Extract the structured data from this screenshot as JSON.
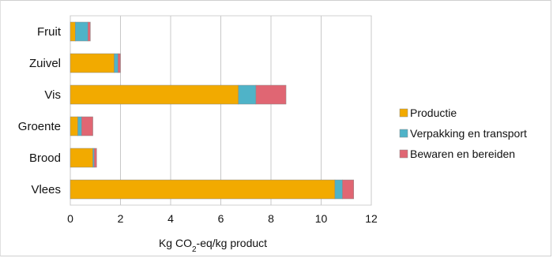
{
  "chart_data": {
    "type": "bar",
    "orientation": "horizontal",
    "stacked": true,
    "categories": [
      "Fruit",
      "Zuivel",
      "Vis",
      "Groente",
      "Brood",
      "Vlees"
    ],
    "series": [
      {
        "name": "Productie",
        "color": "#f2aa00",
        "values": [
          0.2,
          1.75,
          6.7,
          0.3,
          0.9,
          10.55
        ]
      },
      {
        "name": "Verpakking en transport",
        "color": "#4fb3c8",
        "values": [
          0.5,
          0.15,
          0.7,
          0.15,
          0.05,
          0.3
        ]
      },
      {
        "name": "Bewaren en bereiden",
        "color": "#e06673",
        "values": [
          0.1,
          0.1,
          1.2,
          0.45,
          0.1,
          0.45
        ]
      }
    ],
    "xlim": [
      0,
      12
    ],
    "xticks": [
      "0",
      "2",
      "4",
      "6",
      "8",
      "10",
      "12"
    ],
    "xlabel_parts": [
      "Kg CO",
      "2",
      "-eq/kg product"
    ],
    "grid": true,
    "legend_position": "right"
  }
}
